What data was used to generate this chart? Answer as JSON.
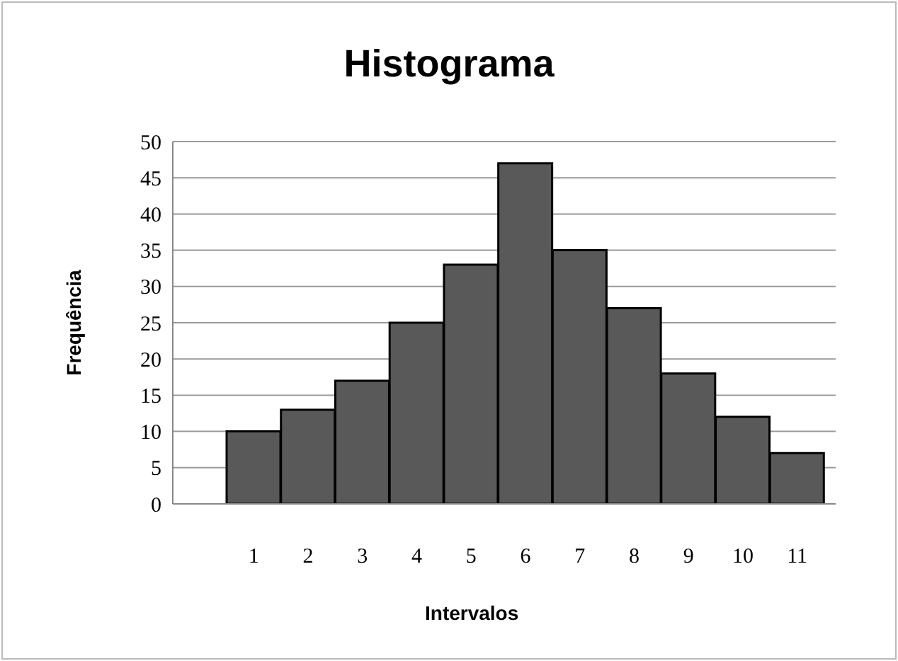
{
  "chart_data": {
    "type": "bar",
    "title": "Histograma",
    "xlabel": "Intervalos",
    "ylabel": "Frequência",
    "categories": [
      "1",
      "2",
      "3",
      "4",
      "5",
      "6",
      "7",
      "8",
      "9",
      "10",
      "11"
    ],
    "values": [
      10,
      13,
      17,
      25,
      33,
      47,
      35,
      27,
      18,
      12,
      7
    ],
    "color": "#595959",
    "ylim": [
      0,
      50
    ],
    "yticks": [
      0,
      5,
      10,
      15,
      20,
      25,
      30,
      35,
      40,
      45,
      50
    ],
    "grid": "y"
  }
}
